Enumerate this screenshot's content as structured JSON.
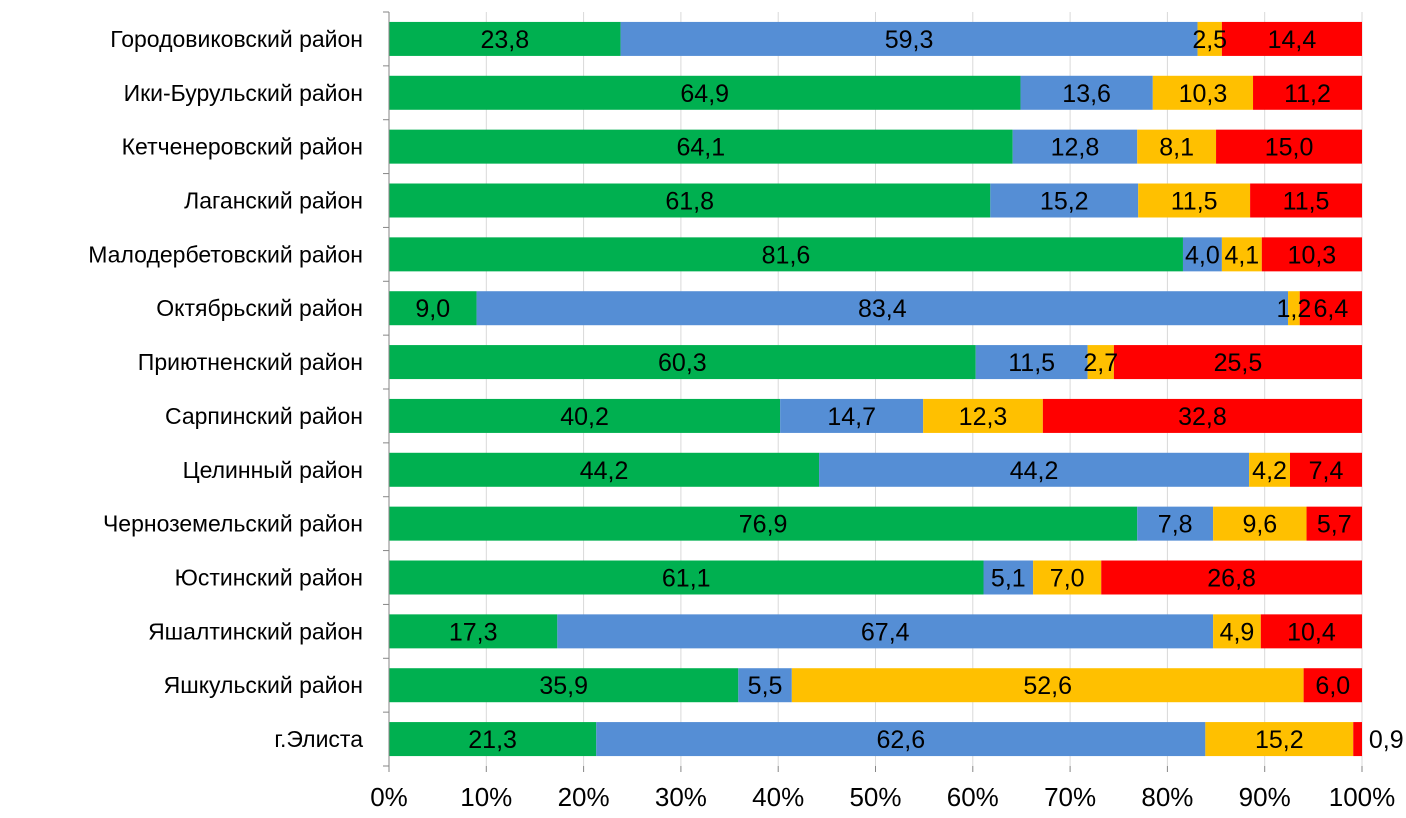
{
  "chart_data": {
    "type": "bar",
    "orientation": "horizontal",
    "stacked": "percent",
    "categories": [
      "Городовиковский район",
      "Ики-Бурульский район",
      "Кетченеровский район",
      "Лаганский район",
      "Малодербетовский район",
      "Октябрьский район",
      "Приютненский район",
      "Сарпинский район",
      "Целинный район",
      "Черноземельский район",
      "Юстинский район",
      "Яшалтинский район",
      "Яшкульский район",
      "г.Элиста"
    ],
    "series": [
      {
        "color": "#00b050",
        "values": [
          23.8,
          64.9,
          64.1,
          61.8,
          81.6,
          9.0,
          60.3,
          40.2,
          44.2,
          76.9,
          61.1,
          17.3,
          35.9,
          21.3
        ],
        "labels": [
          "23,8",
          "64,9",
          "64,1",
          "61,8",
          "81,6",
          "9,0",
          "60,3",
          "40,2",
          "44,2",
          "76,9",
          "61,1",
          "17,3",
          "35,9",
          "21,3"
        ]
      },
      {
        "color": "#558ed5",
        "values": [
          59.3,
          13.6,
          12.8,
          15.2,
          4.0,
          83.4,
          11.5,
          14.7,
          44.2,
          7.8,
          5.1,
          67.4,
          5.5,
          62.6
        ],
        "labels": [
          "59,3",
          "13,6",
          "12,8",
          "15,2",
          "4,0",
          "83,4",
          "11,5",
          "14,7",
          "44,2",
          "7,8",
          "5,1",
          "67,4",
          "5,5",
          "62,6"
        ]
      },
      {
        "color": "#ffc000",
        "values": [
          2.5,
          10.3,
          8.1,
          11.5,
          4.1,
          1.2,
          2.7,
          12.3,
          4.2,
          9.6,
          7.0,
          4.9,
          52.6,
          15.2
        ],
        "labels": [
          "2,5",
          "10,3",
          "8,1",
          "11,5",
          "4,1",
          "1,2",
          "2,7",
          "12,3",
          "4,2",
          "9,6",
          "7,0",
          "4,9",
          "52,6",
          "15,2"
        ]
      },
      {
        "color": "#ff0000",
        "values": [
          14.4,
          11.2,
          15.0,
          11.5,
          10.3,
          6.4,
          25.5,
          32.8,
          7.4,
          5.7,
          26.8,
          10.4,
          6.0,
          0.9
        ],
        "labels": [
          "14,4",
          "11,2",
          "15,0",
          "11,5",
          "10,3",
          "6,4",
          "25,5",
          "32,8",
          "7,4",
          "5,7",
          "26,8",
          "10,4",
          "6,0",
          "0,9"
        ]
      }
    ],
    "x_ticks": [
      "0%",
      "10%",
      "20%",
      "30%",
      "40%",
      "50%",
      "60%",
      "70%",
      "80%",
      "90%",
      "100%"
    ],
    "xlim": [
      0,
      100
    ],
    "grid": true,
    "legend": "none"
  }
}
